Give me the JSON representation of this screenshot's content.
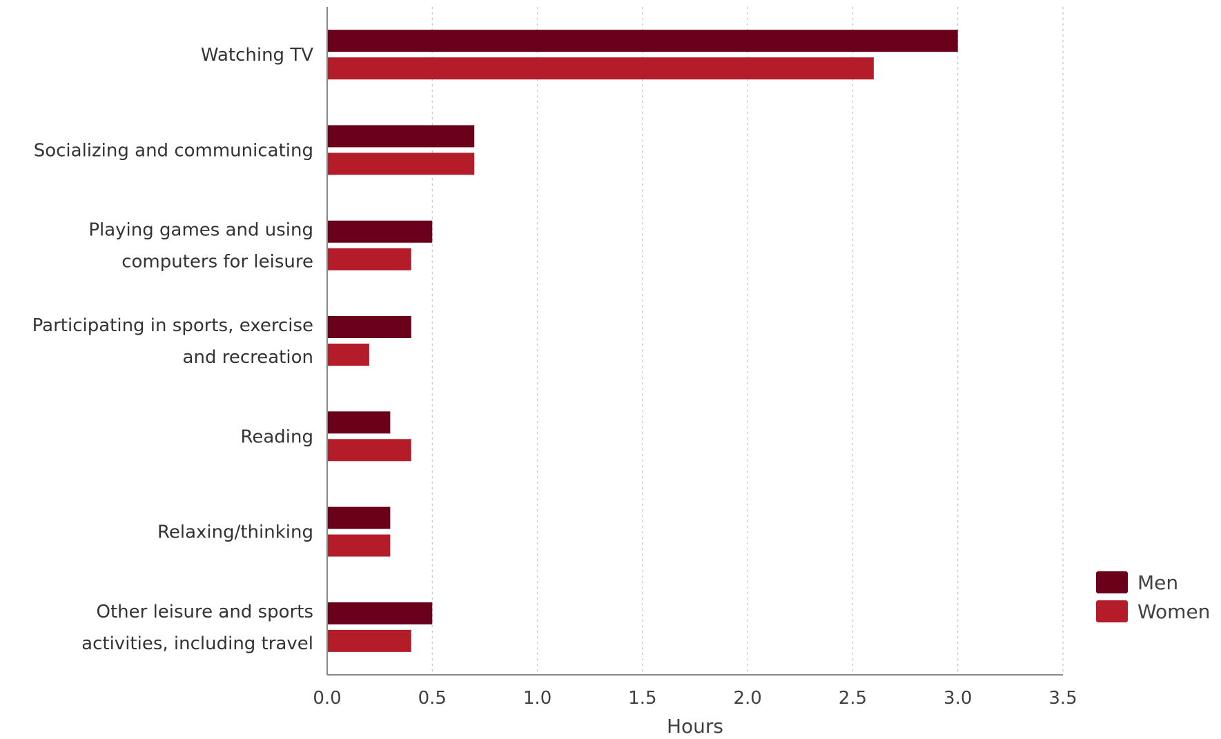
{
  "chart_data": {
    "type": "bar",
    "orientation": "horizontal",
    "categories": [
      [
        "Watching TV"
      ],
      [
        "Socializing and communicating"
      ],
      [
        "Playing games and using",
        "computers for leisure"
      ],
      [
        "Participating in sports, exercise",
        "and recreation"
      ],
      [
        "Reading"
      ],
      [
        "Relaxing/thinking"
      ],
      [
        "Other leisure and sports",
        "activities, including travel"
      ]
    ],
    "series": [
      {
        "name": "Men",
        "color": "#6a0019",
        "values": [
          3.0,
          0.7,
          0.5,
          0.4,
          0.3,
          0.3,
          0.5
        ]
      },
      {
        "name": "Women",
        "color": "#b51c2a",
        "values": [
          2.6,
          0.7,
          0.4,
          0.2,
          0.4,
          0.3,
          0.4
        ]
      }
    ],
    "xlabel": "Hours",
    "ylabel": "",
    "xlim": [
      0,
      3.5
    ],
    "xticks": [
      "0.0",
      "0.5",
      "1.0",
      "1.5",
      "2.0",
      "2.5",
      "3.0",
      "3.5"
    ],
    "grid": "vertical dotted",
    "legend_position": "bottom-right"
  }
}
